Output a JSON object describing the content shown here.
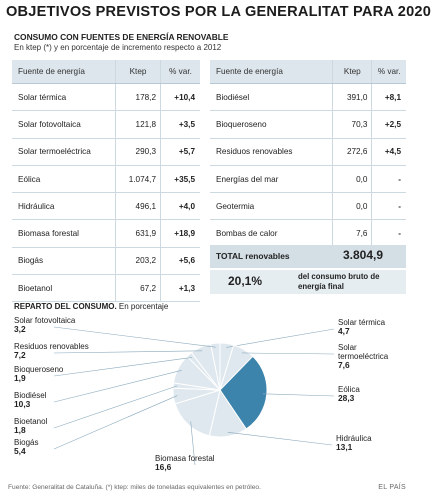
{
  "title": "OBJETIVOS PREVISTOS POR LA GENERALITAT PARA 2020",
  "subtitle": "CONSUMO CON FUENTES DE ENERGÍA RENOVABLE",
  "subtitle2": "En ktep (*) y en porcentaje de incremento respecto a 2012",
  "table_headers": {
    "source": "Fuente de energía",
    "ktep": "Ktep",
    "pct": "% var."
  },
  "table_left": [
    {
      "name": "Solar térmica",
      "ktep": "178,2",
      "pct": "+10,4"
    },
    {
      "name": "Solar fotovoltaica",
      "ktep": "121,8",
      "pct": "+3,5"
    },
    {
      "name": "Solar termoeléctrica",
      "ktep": "290,3",
      "pct": "+5,7"
    },
    {
      "name": "Eólica",
      "ktep": "1.074,7",
      "pct": "+35,5"
    },
    {
      "name": "Hidráulica",
      "ktep": "496,1",
      "pct": "+4,0"
    },
    {
      "name": "Biomasa forestal",
      "ktep": "631,9",
      "pct": "+18,9"
    },
    {
      "name": "Biogás",
      "ktep": "203,2",
      "pct": "+5,6"
    },
    {
      "name": "Bioetanol",
      "ktep": "67,2",
      "pct": "+1,3"
    }
  ],
  "table_right": [
    {
      "name": "Biodiésel",
      "ktep": "391,0",
      "pct": "+8,1"
    },
    {
      "name": "Bioqueroseno",
      "ktep": "70,3",
      "pct": "+2,5"
    },
    {
      "name": "Residuos renovables",
      "ktep": "272,6",
      "pct": "+4,5"
    },
    {
      "name": "Energías del mar",
      "ktep": "0,0",
      "pct": "-"
    },
    {
      "name": "Geotermia",
      "ktep": "0,0",
      "pct": "-"
    },
    {
      "name": "Bombas de calor",
      "ktep": "7,6",
      "pct": "-"
    }
  ],
  "total": {
    "label": "TOTAL renovables",
    "value": "3.804,9"
  },
  "share": {
    "pct": "20,1%",
    "text": "del consumo bruto de energía final"
  },
  "pie_title": {
    "bold": "REPARTO DEL CONSUMO.",
    "rest": " En porcentaje"
  },
  "colors": {
    "highlight": "#3d84ad",
    "slice": "#dfe8ee",
    "slice_stroke": "#ffffff",
    "leader": "#8aa9bd",
    "header_bg": "#dde6ec"
  },
  "chart_data": {
    "type": "pie",
    "title": "REPARTO DEL CONSUMO. En porcentaje",
    "slices": [
      {
        "label": "Solar térmica",
        "value": 4.7,
        "value_text": "4,7"
      },
      {
        "label": "Solar termoeléctrica",
        "value": 7.6,
        "value_text": "7,6"
      },
      {
        "label": "Eólica",
        "value": 28.3,
        "value_text": "28,3",
        "highlight": true
      },
      {
        "label": "Hidráulica",
        "value": 13.1,
        "value_text": "13,1"
      },
      {
        "label": "Biomasa forestal",
        "value": 16.6,
        "value_text": "16,6"
      },
      {
        "label": "Biogás",
        "value": 5.4,
        "value_text": "5,4"
      },
      {
        "label": "Bioetanol",
        "value": 1.8,
        "value_text": "1,8"
      },
      {
        "label": "Biodiésel",
        "value": 10.3,
        "value_text": "10,3"
      },
      {
        "label": "Bioqueroseno",
        "value": 1.9,
        "value_text": "1,9"
      },
      {
        "label": "Residuos renovables",
        "value": 7.2,
        "value_text": "7,2"
      },
      {
        "label": "Solar fotovoltaica",
        "value": 3.2,
        "value_text": "3,2"
      }
    ]
  },
  "footer": "Fuente: Generalitat de Cataluña. (*) ktep: miles de toneladas equivalentes en petróleo.",
  "brand": "EL PAÍS"
}
